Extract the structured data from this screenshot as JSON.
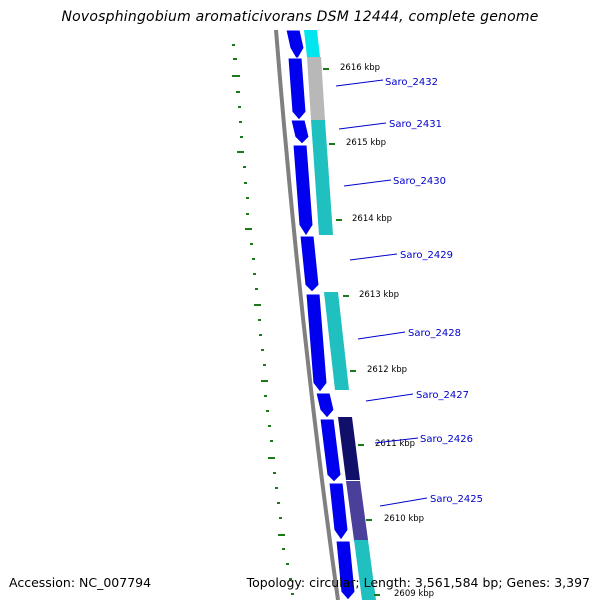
{
  "title": "Novosphingobium aromaticivorans DSM 12444, complete genome",
  "footer": {
    "accession": "Accession: NC_007794",
    "stats": "Topology: circular; Length: 3,561,584 bp; Genes: 3,397"
  },
  "colors": {
    "backbone": "#808080",
    "cds_forward": "#0000ee",
    "track_cyan": "#20c0c0",
    "track_cyan_light": "#00e5ee",
    "track_gray": "#b8b8b8",
    "track_navy": "#10106a",
    "track_slate": "#4a3f9a",
    "gc_marks": "#1a7a1a",
    "label_color": "#0000cc"
  },
  "kbp_ticks": [
    {
      "label": "2616 kbp"
    },
    {
      "label": "2615 kbp"
    },
    {
      "label": "2614 kbp"
    },
    {
      "label": "2613 kbp"
    },
    {
      "label": "2612 kbp"
    },
    {
      "label": "2611 kbp"
    },
    {
      "label": "2610 kbp"
    },
    {
      "label": "2609 kbp"
    }
  ],
  "genes": [
    {
      "label": "Saro_2432"
    },
    {
      "label": "Saro_2431"
    },
    {
      "label": "Saro_2430"
    },
    {
      "label": "Saro_2429"
    },
    {
      "label": "Saro_2428"
    },
    {
      "label": "Saro_2427"
    },
    {
      "label": "Saro_2426"
    },
    {
      "label": "Saro_2425"
    }
  ]
}
